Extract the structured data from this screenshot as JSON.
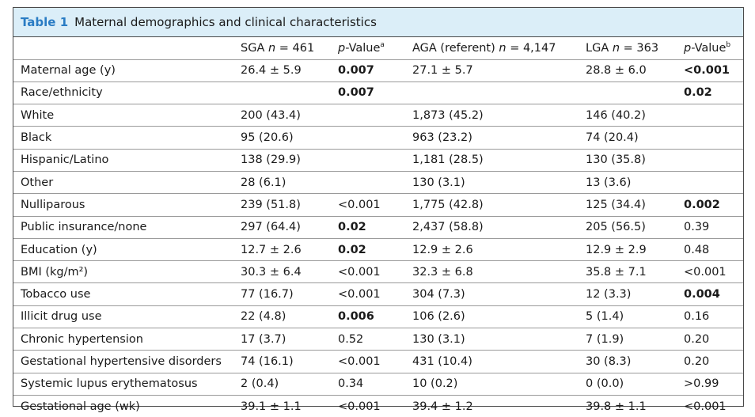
{
  "table": {
    "label": "Table 1",
    "title": "Maternal demographics and clinical characteristics",
    "headers": [
      "",
      "SGA n = 461",
      "p-Value",
      "AGA (referent) n = 4,147",
      "LGA n = 363",
      "p-Value"
    ],
    "header_parts": {
      "sga": {
        "pre": "SGA ",
        "n": "n",
        "post": " = 461"
      },
      "p1": {
        "p": "p",
        "post": "-Value",
        "sup": "a"
      },
      "aga": {
        "pre": "AGA (referent) ",
        "n": "n",
        "post": " = 4,147"
      },
      "lga": {
        "pre": "LGA ",
        "n": "n",
        "post": " = 363"
      },
      "p2": {
        "p": "p",
        "post": "-Value",
        "sup": "b"
      }
    },
    "rows": [
      [
        "Maternal age (y)",
        "26.4 ± 5.9",
        "0.007",
        "27.1 ± 5.7",
        "28.8 ± 6.0",
        "<0.001"
      ],
      [
        "Race/ethnicity",
        "",
        "0.007",
        "",
        "",
        "0.02"
      ],
      [
        "White",
        "200 (43.4)",
        "",
        "1,873 (45.2)",
        "146 (40.2)",
        ""
      ],
      [
        "Black",
        "95 (20.6)",
        "",
        "963 (23.2)",
        "74 (20.4)",
        ""
      ],
      [
        "Hispanic/Latino",
        "138 (29.9)",
        "",
        "1,181 (28.5)",
        "130 (35.8)",
        ""
      ],
      [
        "Other",
        "28 (6.1)",
        "",
        "130 (3.1)",
        "13 (3.6)",
        ""
      ],
      [
        "Nulliparous",
        "239 (51.8)",
        "<0.001",
        "1,775 (42.8)",
        "125 (34.4)",
        "0.002"
      ],
      [
        "Public insurance/none",
        "297 (64.4)",
        "0.02",
        "2,437 (58.8)",
        "205 (56.5)",
        "0.39"
      ],
      [
        "Education (y)",
        "12.7 ± 2.6",
        "0.02",
        "12.9 ± 2.6",
        "12.9 ± 2.9",
        "0.48"
      ],
      [
        "BMI (kg/m²)",
        "30.3 ± 6.4",
        "<0.001",
        "32.3 ± 6.8",
        "35.8 ± 7.1",
        "<0.001"
      ],
      [
        "Tobacco use",
        "77 (16.7)",
        "<0.001",
        "304 (7.3)",
        "12 (3.3)",
        "0.004"
      ],
      [
        "Illicit drug use",
        "22 (4.8)",
        "0.006",
        "106 (2.6)",
        "5 (1.4)",
        "0.16"
      ],
      [
        "Chronic hypertension",
        "17 (3.7)",
        "0.52",
        "130 (3.1)",
        "7 (1.9)",
        "0.20"
      ],
      [
        "Gestational hypertensive disorders",
        "74 (16.1)",
        "<0.001",
        "431 (10.4)",
        "30 (8.3)",
        "0.20"
      ],
      [
        "Systemic lupus erythematosus",
        "2 (0.4)",
        "0.34",
        "10 (0.2)",
        "0 (0.0)",
        ">0.99"
      ],
      [
        "Gestational age (wk)",
        "39.1 ± 1.1",
        "<0.001",
        "39.4 ± 1.2",
        "39.8 ± 1.1",
        "<0.001"
      ]
    ],
    "bold_cells": {
      "p1": [
        true,
        true,
        false,
        false,
        false,
        false,
        false,
        true,
        true,
        false,
        false,
        true,
        false,
        false,
        false,
        false
      ],
      "p2": [
        true,
        true,
        false,
        false,
        false,
        false,
        true,
        false,
        false,
        false,
        true,
        false,
        false,
        false,
        false,
        false
      ]
    },
    "colors": {
      "title_bg": "#dbeef8",
      "label": "#2a7cc4",
      "border": "#4a4a4a"
    }
  }
}
